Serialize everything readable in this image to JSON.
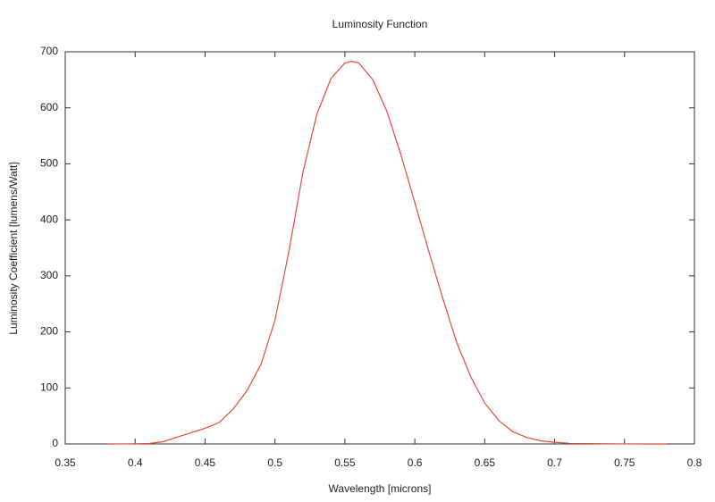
{
  "chart_data": {
    "type": "line",
    "title": "Luminosity Function",
    "xlabel": "Wavelength [microns]",
    "ylabel": "Luminosity Coefficient [lumens/Watt]",
    "x": [
      0.38,
      0.39,
      0.4,
      0.41,
      0.42,
      0.43,
      0.44,
      0.45,
      0.46,
      0.47,
      0.48,
      0.49,
      0.5,
      0.51,
      0.52,
      0.53,
      0.54,
      0.55,
      0.555,
      0.56,
      0.57,
      0.58,
      0.59,
      0.6,
      0.61,
      0.62,
      0.63,
      0.64,
      0.65,
      0.66,
      0.67,
      0.68,
      0.69,
      0.7,
      0.71,
      0.72,
      0.73,
      0.74,
      0.75,
      0.76,
      0.77,
      0.78
    ],
    "values": [
      0.03,
      0.08,
      0.27,
      0.8,
      4,
      12,
      20,
      28,
      38,
      62,
      95,
      142,
      221,
      344,
      485,
      589,
      652,
      680,
      683,
      680,
      650,
      594,
      517,
      431,
      344,
      260,
      181,
      120,
      73,
      42,
      22,
      11.6,
      5.6,
      2.8,
      1.4,
      0.7,
      0.36,
      0.17,
      0.08,
      0.04,
      0.02,
      0.01
    ],
    "color": "#e8483a",
    "xlim": [
      0.35,
      0.8
    ],
    "xticks": [
      0.35,
      0.4,
      0.45,
      0.5,
      0.55,
      0.6,
      0.65,
      0.7,
      0.75,
      0.8
    ],
    "ylim": [
      0,
      700
    ],
    "yticks": [
      0,
      100,
      200,
      300,
      400,
      500,
      600,
      700
    ],
    "grid": false
  }
}
